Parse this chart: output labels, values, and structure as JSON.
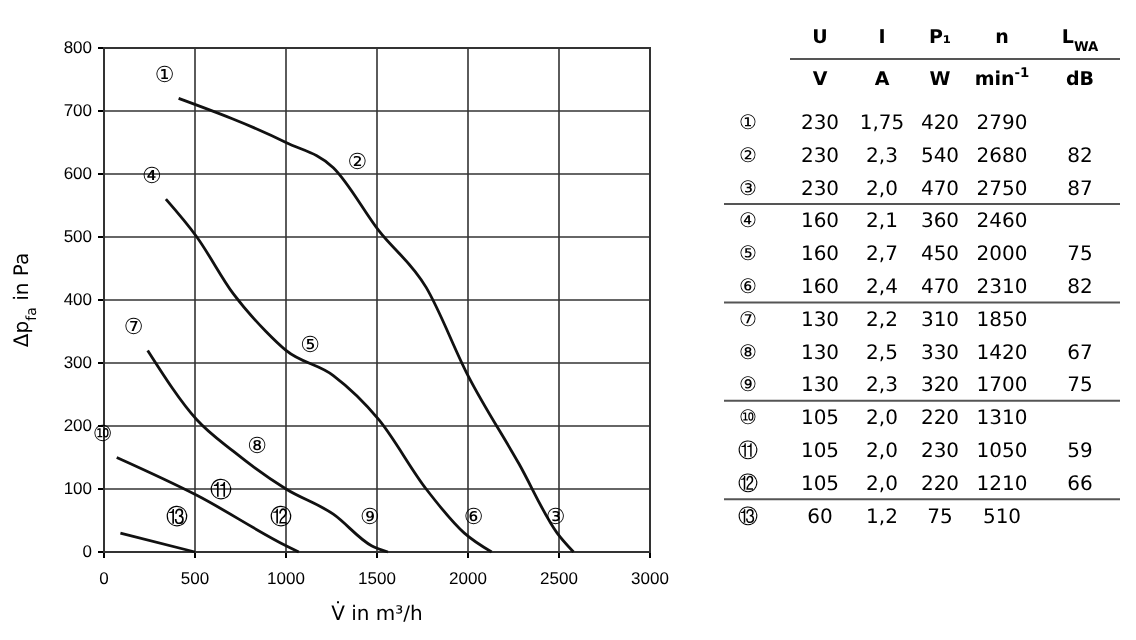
{
  "chart_data": {
    "type": "line",
    "xlabel": "V̇ in m³/h",
    "ylabel": "Δp$_{fa}$ in Pa",
    "xlim": [
      0,
      3000
    ],
    "xticks": [
      0,
      500,
      1000,
      1500,
      2000,
      2500,
      3000
    ],
    "ylim": [
      0,
      800
    ],
    "yticks": [
      0,
      100,
      200,
      300,
      400,
      500,
      600,
      700,
      800
    ],
    "grid": true,
    "marker": "none",
    "line_style": "solid",
    "series": [
      {
        "color": "#111111",
        "x": [
          410,
          1000,
          1260,
          1510,
          1770,
          2000,
          2280,
          2490,
          2580
        ],
        "values": [
          720,
          650,
          610,
          510,
          420,
          280,
          140,
          30,
          0
        ]
      },
      {
        "color": "#111111",
        "x": [
          340,
          510,
          710,
          890,
          1000,
          1260,
          1510,
          1770,
          1980,
          2130
        ],
        "values": [
          560,
          500,
          410,
          350,
          320,
          280,
          210,
          100,
          30,
          0
        ]
      },
      {
        "color": "#111111",
        "x": [
          240,
          510,
          710,
          1000,
          1260,
          1470,
          1560
        ],
        "values": [
          320,
          210,
          160,
          100,
          60,
          10,
          0
        ]
      },
      {
        "color": "#111111",
        "x": [
          70,
          510,
          1000,
          1070
        ],
        "values": [
          150,
          90,
          10,
          0
        ]
      },
      {
        "color": "#111111",
        "x": [
          90,
          500
        ],
        "values": [
          30,
          0
        ]
      }
    ],
    "annotations": [
      {
        "text": "①",
        "x": 410,
        "y": 720
      },
      {
        "text": "②",
        "x": 1260,
        "y": 610
      },
      {
        "text": "③",
        "x": 2580,
        "y": 0
      },
      {
        "text": "④",
        "x": 340,
        "y": 560
      },
      {
        "text": "⑤",
        "x": 1000,
        "y": 320
      },
      {
        "text": "⑥",
        "x": 2130,
        "y": 0
      },
      {
        "text": "⑦",
        "x": 240,
        "y": 320
      },
      {
        "text": "⑧",
        "x": 710,
        "y": 160
      },
      {
        "text": "⑨",
        "x": 1560,
        "y": 0
      },
      {
        "text": "⑩",
        "x": 70,
        "y": 150
      },
      {
        "text": "⑪",
        "x": 510,
        "y": 90
      },
      {
        "text": "⑫",
        "x": 1070,
        "y": 0
      },
      {
        "text": "⑬",
        "x": 500,
        "y": 0
      },
      "\tU\tI\tP₁\tn\tL$_{WA}$",
      "\tV\tA\tW\tmin$^{-1}$\tdB",
      "①\t230\t1,75\t420\t2790\t",
      "②\t230\t2,3\t540\t2680\t82",
      "③\t230\t2,0\t470\t2750\t87",
      "④\t160\t2,1\t360\t2460\t",
      "⑤\t160\t2,7\t450\t2000\t75",
      "⑥\t160\t2,4\t470\t2310\t82",
      "⑦\t130\t2,2\t310\t1850\t",
      "⑧\t130\t2,5\t330\t1420\t67",
      "⑨\t130\t2,3\t320\t1700\t75",
      "⑩\t105\t2,0\t220\t1310\t",
      "⑪\t105\t2,0\t230\t1050\t59",
      "⑫\t105\t2,0\t220\t1210\t66",
      "⑬\t60\t1,2\t75\t510\t"
    ]
  }
}
